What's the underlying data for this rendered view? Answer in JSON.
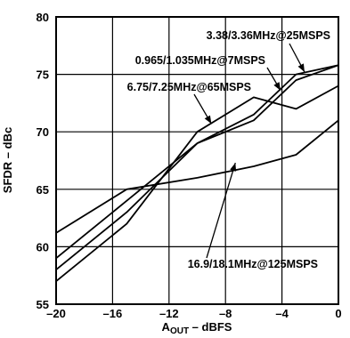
{
  "chart_data": {
    "type": "line",
    "xlabel": "A",
    "xlabel_sub": "OUT",
    "xlabel_tail": " – dBFS",
    "ylabel": "SFDR – dBc",
    "xlim": [
      -20,
      0
    ],
    "ylim": [
      55,
      80
    ],
    "x_ticks": [
      -20,
      -16,
      -12,
      -8,
      -4,
      0
    ],
    "x_tick_labels": [
      "–20",
      "–16",
      "–12",
      "–8",
      "–4",
      "0"
    ],
    "y_ticks": [
      55,
      60,
      65,
      70,
      75,
      80
    ],
    "y_tick_labels": [
      "55",
      "60",
      "65",
      "70",
      "75",
      "80"
    ],
    "grid": true,
    "line_color": "#000000",
    "series": [
      {
        "name": "3.38/3.36MHz@25MSPS",
        "x": [
          -20,
          -15,
          -10,
          -6,
          -3,
          0
        ],
        "y": [
          58.0,
          63.0,
          69.0,
          71.5,
          75.0,
          75.8
        ]
      },
      {
        "name": "0.965/1.035MHz@7MSPS",
        "x": [
          -20,
          -15,
          -10,
          -6,
          -3,
          0
        ],
        "y": [
          59.0,
          64.0,
          69.0,
          71.0,
          74.5,
          75.8
        ]
      },
      {
        "name": "6.75/7.25MHz@65MSPS",
        "x": [
          -20,
          -15,
          -10,
          -6,
          -3,
          0
        ],
        "y": [
          57.0,
          62.0,
          70.0,
          73.0,
          72.0,
          74.0
        ]
      },
      {
        "name": "16.9/18.1MHz@125MSPS",
        "x": [
          -20,
          -15,
          -10,
          -6,
          -3,
          0
        ],
        "y": [
          61.2,
          65.0,
          66.0,
          67.0,
          68.0,
          71.0
        ]
      }
    ],
    "annotations": [
      {
        "text": "3.38/3.36MHz@25MSPS",
        "series": 0,
        "point_x": -2.4,
        "point_y": 75.2
      },
      {
        "text": "0.965/1.035MHz@7MSPS",
        "series": 1,
        "point_x": -4.1,
        "point_y": 73.6
      },
      {
        "text": "6.75/7.25MHz@65MSPS",
        "series": 2,
        "point_x": -9.0,
        "point_y": 70.7
      },
      {
        "text": "16.9/18.1MHz@125MSPS",
        "series": 3,
        "point_x": -7.3,
        "point_y": 67.3
      }
    ]
  }
}
